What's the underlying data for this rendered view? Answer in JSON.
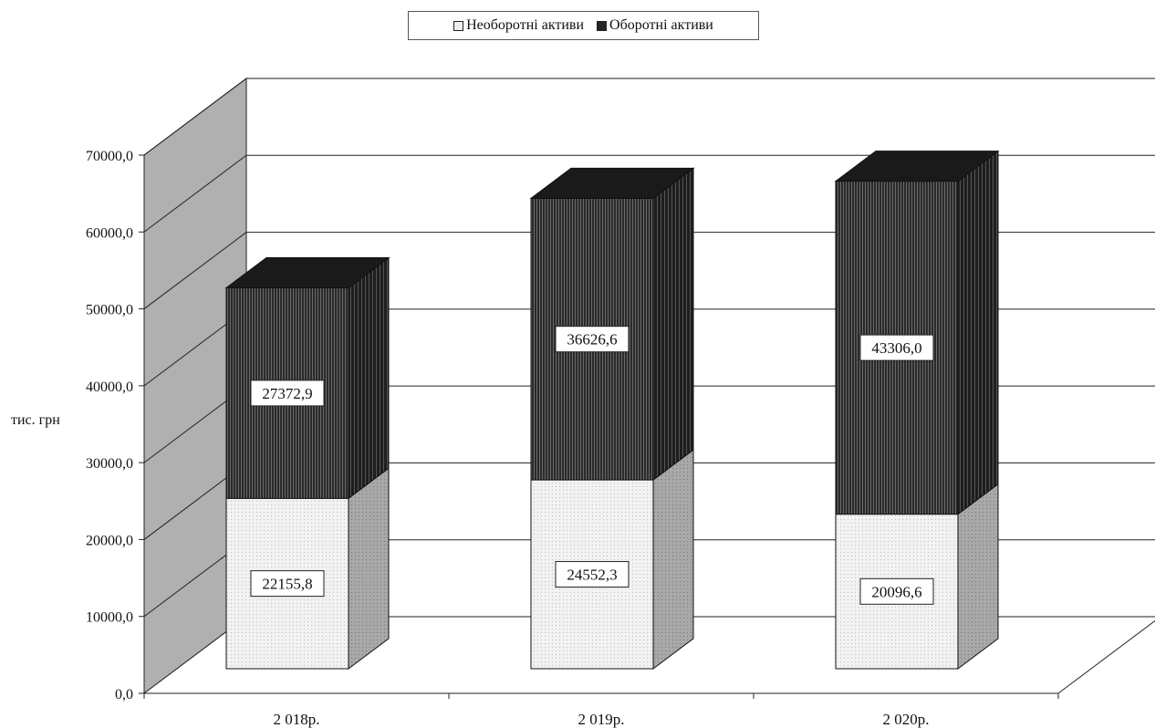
{
  "chart_data": {
    "type": "bar",
    "stacked": true,
    "three_d": true,
    "categories": [
      "2 018р.",
      "2 019р.",
      "2 020р."
    ],
    "series": [
      {
        "name": "Необоротні активи",
        "values": [
          22155.8,
          24552.3,
          20096.6
        ],
        "value_labels": [
          "22155,8",
          "24552,3",
          "20096,6"
        ],
        "color": "#ececec"
      },
      {
        "name": "Оборотні активи",
        "values": [
          27372.9,
          36626.6,
          43306.0
        ],
        "value_labels": [
          "27372,9",
          "36626,6",
          "43306,0"
        ],
        "color": "#262626"
      }
    ],
    "ylabel": "тис. грн",
    "ylim": [
      0,
      70000
    ],
    "yticks": [
      "0,0",
      "10000,0",
      "20000,0",
      "30000,0",
      "40000,0",
      "50000,0",
      "60000,0",
      "70000,0"
    ],
    "grid": true,
    "legend_position": "top-center"
  }
}
